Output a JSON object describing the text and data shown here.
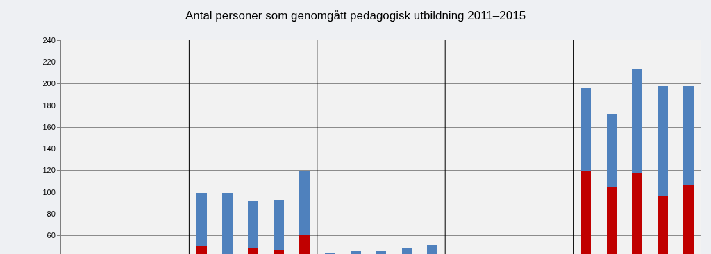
{
  "chart_data": {
    "type": "bar",
    "title": "Antal personer som genomgått pedagogisk utbildning 2011–2015",
    "categories": [
      null,
      null,
      null,
      null,
      null,
      null,
      null,
      null,
      null,
      null,
      null,
      null,
      null,
      null,
      null,
      null,
      null,
      null,
      null,
      null,
      null,
      null,
      null,
      null,
      null
    ],
    "stacked": true,
    "series": [
      {
        "color": "#c00000",
        "values": [
          null,
          null,
          null,
          null,
          null,
          50,
          null,
          49,
          47,
          60,
          null,
          null,
          null,
          null,
          null,
          null,
          null,
          null,
          null,
          null,
          120,
          105,
          117,
          96,
          107
        ]
      },
      {
        "color": "#4f81bd",
        "values": [
          null,
          null,
          null,
          null,
          null,
          49,
          99,
          43,
          46,
          60,
          44,
          46,
          46,
          49,
          51,
          null,
          null,
          null,
          null,
          null,
          76,
          67,
          97,
          102,
          91
        ]
      }
    ],
    "ylim": [
      43,
      240
    ],
    "yticks": [
      60,
      80,
      100,
      120,
      140,
      160,
      180,
      200,
      220,
      240
    ],
    "grid": "y"
  }
}
